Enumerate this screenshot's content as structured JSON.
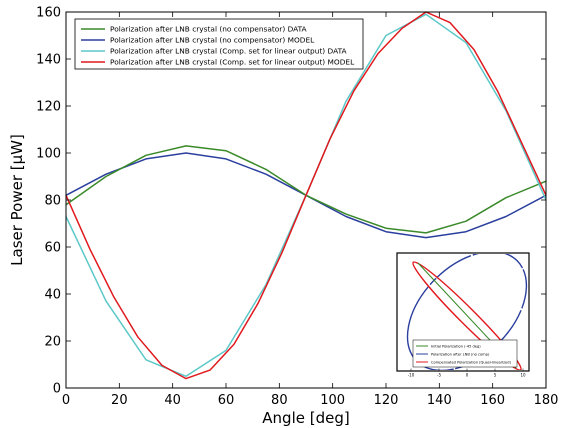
{
  "chart_data": [
    {
      "type": "line",
      "xlabel": "Angle [deg]",
      "ylabel": "Laser Power [μW]",
      "xlim": [
        0,
        180
      ],
      "ylim": [
        0,
        160
      ],
      "xticks": [
        "0",
        "20",
        "40",
        "60",
        "80",
        "100",
        "120",
        "140",
        "160",
        "180"
      ],
      "yticks": [
        "0",
        "20",
        "40",
        "60",
        "80",
        "100",
        "120",
        "140",
        "160"
      ],
      "grid": false,
      "legend_position": "top-left",
      "series": [
        {
          "name": "Polarization after LNB crystal (no compensator) DATA",
          "color": "#3a8a2a",
          "x": [
            0,
            15,
            30,
            45,
            60,
            75,
            90,
            105,
            120,
            135,
            150,
            165,
            180
          ],
          "y": [
            78,
            90,
            99,
            103,
            101,
            93,
            82,
            74,
            68,
            66,
            71,
            81,
            88
          ]
        },
        {
          "name": "Polarization after LNB crystal (no compensator) MODEL",
          "color": "#2b3f9e",
          "x": [
            0,
            15,
            30,
            45,
            60,
            75,
            90,
            105,
            120,
            135,
            150,
            165,
            180
          ],
          "y": [
            82,
            91,
            97.5,
            100,
            97.5,
            91,
            82,
            73,
            66.5,
            64,
            66.5,
            73,
            82
          ]
        },
        {
          "name": "Polarization after LNB crystal (Comp. set for linear output) DATA",
          "color": "#5cc8c8",
          "x": [
            0,
            15,
            30,
            45,
            60,
            75,
            90,
            105,
            120,
            135,
            150,
            165,
            180
          ],
          "y": [
            73,
            37,
            12,
            5,
            16,
            44,
            82,
            122,
            150,
            159,
            147,
            118,
            80
          ]
        },
        {
          "name": "Polarization after LNB crystal (Comp. set for linear output) MODEL",
          "color": "#e0191e",
          "x": [
            0,
            9,
            18,
            27,
            36,
            45,
            54,
            63,
            72,
            81,
            90,
            99,
            108,
            117,
            126,
            135,
            144,
            153,
            162,
            171,
            180
          ],
          "y": [
            82,
            59,
            38.6,
            21.6,
            9.6,
            4,
            7.6,
            18.6,
            36,
            57.6,
            82,
            106,
            126.5,
            142.3,
            153,
            160,
            155.5,
            144,
            126,
            104,
            82
          ]
        }
      ]
    },
    {
      "type": "line",
      "xticks": [
        "-10",
        "-5",
        "0",
        "5",
        "10"
      ],
      "legend_position": "bottom",
      "series": [
        {
          "name": "Initial Polarization (-45 deg)",
          "color": "#3a8a2a"
        },
        {
          "name": "Polarization after LNB (no comp)",
          "color": "#2b3f9e"
        },
        {
          "name": "Compensated Polarization (Quasi-linearized)",
          "color": "#e0191e"
        }
      ]
    }
  ]
}
